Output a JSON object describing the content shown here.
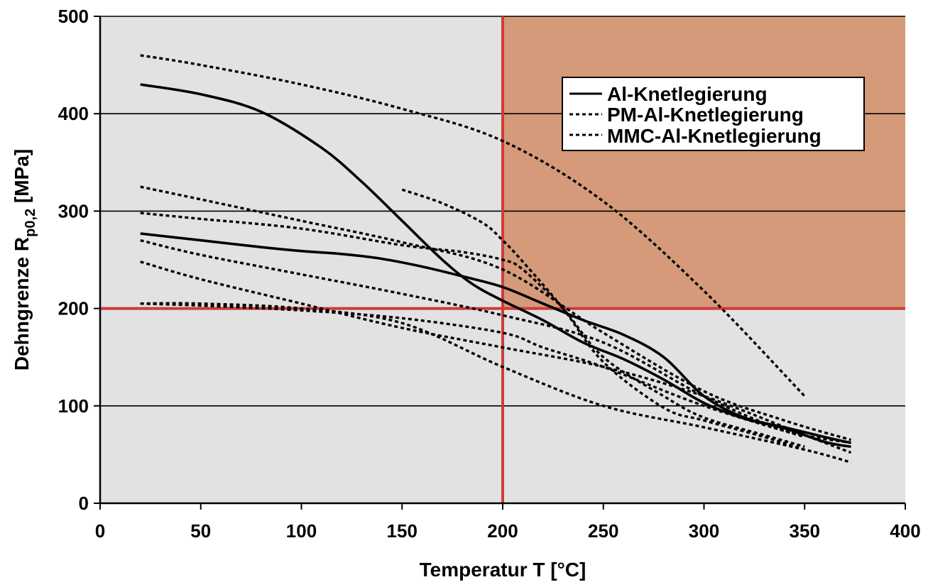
{
  "chart_data": {
    "type": "line",
    "xlabel": "Temperatur T [°C]",
    "ylabel": "Dehngrenze R",
    "ylabel_subscript": "p0,2",
    "ylabel_unit": " [MPa]",
    "xlim": [
      0,
      400
    ],
    "ylim": [
      0,
      500
    ],
    "xticks": [
      0,
      50,
      100,
      150,
      200,
      250,
      300,
      350,
      400
    ],
    "yticks": [
      0,
      100,
      200,
      300,
      400,
      500
    ],
    "grid": "horizontal",
    "legend_position": "top-right",
    "highlight": {
      "x_threshold": 200,
      "y_threshold": 200,
      "region": "x>=200 and y>=200"
    },
    "colors": {
      "plot_bg": "#e2e2e2",
      "highlight_region": "#d49a7a",
      "threshold_line": "#d13a3a",
      "series": "#000000"
    },
    "legend": [
      {
        "label": "Al-Knetlegierung",
        "style": "solid"
      },
      {
        "label": "PM-Al-Knetlegierung",
        "style": "dotted"
      },
      {
        "label": "MMC-Al-Knetlegierung",
        "style": "dotted"
      }
    ],
    "series": [
      {
        "style": "solid",
        "x": [
          20,
          50,
          80,
          110,
          130,
          150,
          170,
          185,
          200,
          220,
          240,
          260,
          280,
          300,
          320,
          340,
          360,
          373
        ],
        "y": [
          430,
          420,
          402,
          365,
          330,
          290,
          250,
          225,
          208,
          188,
          165,
          148,
          127,
          103,
          87,
          77,
          63,
          58
        ]
      },
      {
        "style": "solid",
        "x": [
          20,
          50,
          80,
          100,
          120,
          140,
          160,
          180,
          200,
          220,
          240,
          260,
          280,
          300,
          320,
          340,
          360,
          373
        ],
        "y": [
          277,
          270,
          263,
          259,
          256,
          251,
          243,
          233,
          222,
          205,
          188,
          173,
          150,
          110,
          88,
          78,
          68,
          62
        ]
      },
      {
        "style": "dotted",
        "x": [
          20,
          50,
          100,
          150,
          200,
          250,
          300,
          350
        ],
        "y": [
          460,
          450,
          430,
          405,
          372,
          310,
          218,
          110
        ]
      },
      {
        "style": "dotted",
        "x": [
          150,
          170,
          190,
          200,
          210,
          230,
          250,
          280,
          300,
          330,
          350
        ],
        "y": [
          322,
          308,
          288,
          270,
          248,
          200,
          145,
          98,
          85,
          68,
          55
        ]
      },
      {
        "style": "dotted",
        "x": [
          20,
          50,
          100,
          150,
          200,
          250,
          300,
          340,
          373
        ],
        "y": [
          325,
          312,
          290,
          268,
          240,
          175,
          115,
          85,
          65
        ]
      },
      {
        "style": "dotted",
        "x": [
          20,
          50,
          100,
          150,
          180,
          200,
          210,
          230,
          250,
          280,
          300,
          330,
          350
        ],
        "y": [
          298,
          292,
          282,
          265,
          258,
          250,
          240,
          200,
          150,
          110,
          88,
          70,
          58
        ]
      },
      {
        "style": "dotted",
        "x": [
          20,
          50,
          100,
          150,
          200,
          250,
          300,
          340,
          373
        ],
        "y": [
          270,
          255,
          235,
          215,
          193,
          165,
          110,
          75,
          62
        ]
      },
      {
        "style": "dotted",
        "x": [
          20,
          50,
          100,
          150,
          200,
          250,
          300,
          350,
          373
        ],
        "y": [
          248,
          230,
          205,
          180,
          160,
          140,
          110,
          70,
          52
        ]
      },
      {
        "style": "dotted",
        "x": [
          20,
          50,
          100,
          150,
          200,
          250,
          300,
          350,
          373
        ],
        "y": [
          205,
          205,
          200,
          185,
          140,
          100,
          78,
          55,
          42
        ]
      },
      {
        "style": "dotted",
        "x": [
          20,
          50,
          100,
          150,
          200,
          220,
          250,
          300,
          350
        ],
        "y": [
          205,
          203,
          198,
          190,
          175,
          160,
          140,
          100,
          68
        ]
      }
    ]
  }
}
